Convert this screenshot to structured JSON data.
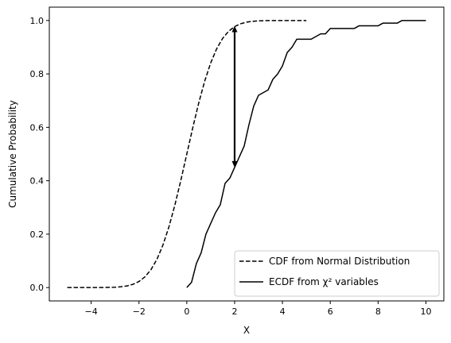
{
  "chart_data": {
    "type": "line",
    "title": "",
    "xlabel": "X",
    "ylabel": "Cumulative Probability",
    "xlim": [
      -5.75,
      10.75
    ],
    "ylim": [
      -0.05,
      1.05
    ],
    "xticks": [
      -4,
      -2,
      0,
      2,
      4,
      6,
      8,
      10
    ],
    "xtick_labels": [
      "−4",
      "−2",
      "0",
      "2",
      "4",
      "6",
      "8",
      "10"
    ],
    "yticks": [
      0.0,
      0.2,
      0.4,
      0.6,
      0.8,
      1.0
    ],
    "ytick_labels": [
      "0.0",
      "0.2",
      "0.4",
      "0.6",
      "0.8",
      "1.0"
    ],
    "grid": false,
    "legend_position": "lower-right",
    "series": [
      {
        "name": "CDF from Normal Distribution",
        "style": "dashed",
        "color": "#000000",
        "x": [
          -5,
          -4.5,
          -4,
          -3.5,
          -3,
          -2.75,
          -2.5,
          -2.25,
          -2,
          -1.75,
          -1.5,
          -1.25,
          -1,
          -0.75,
          -0.5,
          -0.25,
          0,
          0.25,
          0.5,
          0.75,
          1,
          1.25,
          1.5,
          1.75,
          2,
          2.25,
          2.5,
          2.75,
          3,
          3.5,
          4,
          4.5,
          5
        ],
        "y": [
          0.0,
          0.0,
          0.0,
          0.0002,
          0.0013,
          0.003,
          0.0062,
          0.0122,
          0.0228,
          0.0401,
          0.0668,
          0.1056,
          0.1587,
          0.2266,
          0.3085,
          0.4013,
          0.5,
          0.5987,
          0.6915,
          0.7734,
          0.8413,
          0.8944,
          0.9332,
          0.9599,
          0.9772,
          0.9878,
          0.9938,
          0.997,
          0.9987,
          0.9998,
          1.0,
          1.0,
          1.0
        ]
      },
      {
        "name": "ECDF from χ² variables",
        "style": "solid",
        "color": "#000000",
        "x": [
          0.0,
          0.2,
          0.4,
          0.6,
          0.8,
          1.0,
          1.2,
          1.4,
          1.6,
          1.8,
          2.0,
          2.2,
          2.4,
          2.6,
          2.8,
          3.0,
          3.2,
          3.4,
          3.6,
          3.8,
          4.0,
          4.2,
          4.4,
          4.6,
          4.8,
          5.0,
          5.2,
          5.4,
          5.6,
          5.8,
          6.0,
          6.2,
          6.4,
          6.6,
          6.8,
          7.0,
          7.2,
          7.4,
          7.6,
          7.8,
          8.0,
          8.2,
          8.4,
          8.6,
          8.8,
          9.0,
          9.2,
          9.4,
          9.6,
          9.8,
          10.0
        ],
        "y": [
          0.0,
          0.02,
          0.09,
          0.13,
          0.2,
          0.24,
          0.28,
          0.31,
          0.39,
          0.41,
          0.45,
          0.49,
          0.53,
          0.61,
          0.68,
          0.72,
          0.73,
          0.74,
          0.78,
          0.8,
          0.83,
          0.88,
          0.9,
          0.93,
          0.93,
          0.93,
          0.93,
          0.94,
          0.95,
          0.95,
          0.97,
          0.97,
          0.97,
          0.97,
          0.97,
          0.97,
          0.98,
          0.98,
          0.98,
          0.98,
          0.98,
          0.99,
          0.99,
          0.99,
          0.99,
          1.0,
          1.0,
          1.0,
          1.0,
          1.0,
          1.0
        ]
      }
    ],
    "annotations": [
      {
        "type": "double-arrow",
        "x": 2,
        "y_from": 0.45,
        "y_to": 0.98
      }
    ]
  }
}
